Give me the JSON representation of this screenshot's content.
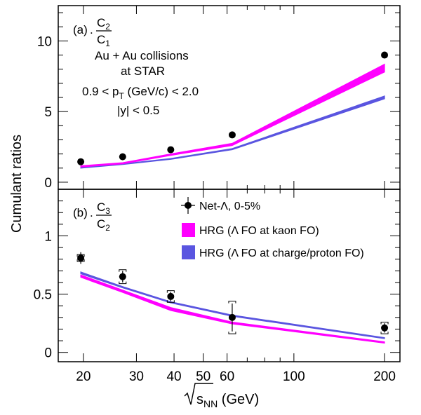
{
  "chart_data": [
    {
      "panel": "(a)",
      "type": "scatter",
      "ratio": {
        "numerator": "C",
        "numerator_sub": "2",
        "denominator": "C",
        "denominator_sub": "1"
      },
      "annotation_lines": [
        "Au + Au collisions",
        "at STAR",
        "0.9 < p",
        "T",
        " (GeV/c) < 2.0",
        "|y| < 0.5"
      ],
      "xlabel_prefix": "s",
      "xlabel_sub": "NN",
      "xlabel_suffix": " (GeV)",
      "ylabel": "Cumulant ratios",
      "x_scale": "log",
      "xlim": [
        16.5,
        225
      ],
      "ylim": [
        -0.5,
        12.5
      ],
      "yticks": [
        0,
        5,
        10
      ],
      "series": [
        {
          "name": "Net-Λ, 0-5%",
          "marker": "filled-circle",
          "color": "#000000",
          "x": [
            19.6,
            27,
            39,
            62.4,
            200
          ],
          "y": [
            1.45,
            1.8,
            2.3,
            3.35,
            9.0
          ],
          "err": [
            0.08,
            0.08,
            0.08,
            0.1,
            0.2
          ]
        },
        {
          "name": "HRG (Λ FO at kaon FO)",
          "style": "band",
          "color": "#ff00ff",
          "x": [
            19.6,
            27,
            39,
            62.4,
            200
          ],
          "lower": [
            1.08,
            1.3,
            1.9,
            2.6,
            7.8
          ],
          "upper": [
            1.16,
            1.38,
            2.0,
            2.75,
            8.35
          ]
        },
        {
          "name": "HRG (Λ FO at charge/proton FO)",
          "style": "band",
          "color": "#5a55e0",
          "x": [
            19.6,
            27,
            39,
            62.4,
            200
          ],
          "lower": [
            1.0,
            1.25,
            1.62,
            2.3,
            5.9
          ],
          "upper": [
            1.06,
            1.3,
            1.68,
            2.38,
            6.1
          ]
        }
      ]
    },
    {
      "panel": "(b)",
      "type": "scatter",
      "ratio": {
        "numerator": "C",
        "numerator_sub": "3",
        "denominator": "C",
        "denominator_sub": "2"
      },
      "x_scale": "log",
      "xlim": [
        16.5,
        225
      ],
      "ylim": [
        -0.08,
        1.4
      ],
      "yticks": [
        0,
        0.5,
        1
      ],
      "ytick_labels": [
        "0",
        "0.5",
        "1"
      ],
      "xticks": [
        20,
        30,
        40,
        50,
        60,
        100,
        200
      ],
      "xtick_labels": [
        "20",
        "30",
        "40",
        "50",
        "60",
        "100",
        "200"
      ],
      "legend_placement": "top-right",
      "series": [
        {
          "name": "Net-Λ, 0-5%",
          "marker": "filled-circle",
          "color": "#000000",
          "x": [
            19.6,
            27,
            39,
            62.4,
            200
          ],
          "y": [
            0.81,
            0.65,
            0.48,
            0.3,
            0.21
          ],
          "stat_err": [
            0.05,
            0.05,
            0.04,
            0.12,
            0.04
          ],
          "sys_err": [
            0.03,
            0.06,
            0.05,
            0.14,
            0.05
          ]
        },
        {
          "name": "HRG (Λ FO at kaon FO)",
          "style": "band",
          "color": "#ff00ff",
          "x": [
            19.6,
            27,
            39,
            62.4,
            200
          ],
          "lower": [
            0.645,
            0.515,
            0.36,
            0.245,
            0.08
          ],
          "upper": [
            0.665,
            0.535,
            0.385,
            0.26,
            0.09
          ]
        },
        {
          "name": "HRG (Λ FO at charge/proton FO)",
          "style": "band",
          "color": "#5a55e0",
          "x": [
            19.6,
            27,
            39,
            62.4,
            200
          ],
          "lower": [
            0.675,
            0.555,
            0.425,
            0.31,
            0.118
          ],
          "upper": [
            0.69,
            0.565,
            0.435,
            0.32,
            0.127
          ]
        }
      ]
    }
  ]
}
